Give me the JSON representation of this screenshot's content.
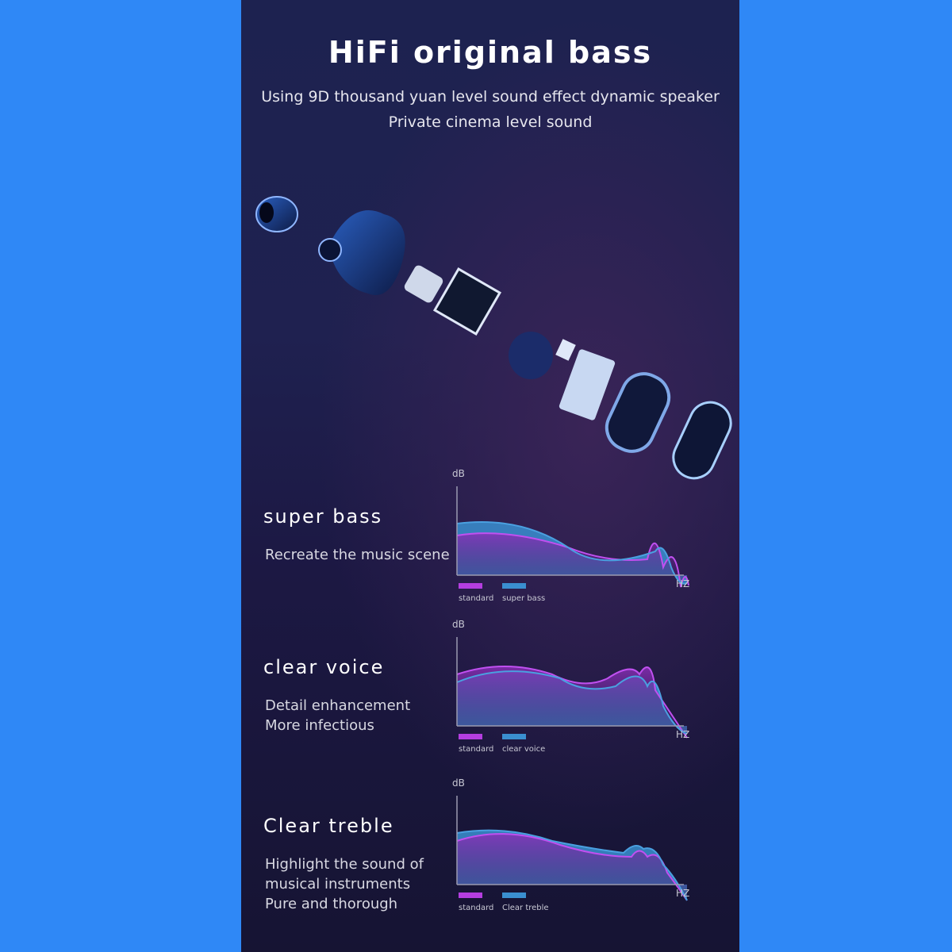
{
  "header": {
    "title": "HiFi original bass",
    "subtitle_lines": [
      "Using 9D thousand yuan level sound effect dynamic speaker",
      "Private cinema level sound"
    ]
  },
  "features": [
    {
      "title": "super bass",
      "desc": [
        "Recreate the music scene"
      ],
      "chart": {
        "y_label": "dB",
        "x_label": "HZ",
        "legend": [
          "standard",
          "super bass"
        ]
      }
    },
    {
      "title": "clear voice",
      "desc": [
        "Detail enhancement",
        "More infectious"
      ],
      "chart": {
        "y_label": "dB",
        "x_label": "HZ",
        "legend": [
          "standard",
          "clear voice"
        ]
      }
    },
    {
      "title": "Clear treble",
      "desc": [
        "Highlight the sound of",
        "musical instruments",
        "Pure and thorough"
      ],
      "chart": {
        "y_label": "dB",
        "x_label": "HZ",
        "legend": [
          "standard",
          "Clear treble"
        ]
      }
    }
  ],
  "colors": {
    "background": "#2f88f6",
    "standard": "#b43ee0",
    "highlight": "#3a8fd0"
  }
}
